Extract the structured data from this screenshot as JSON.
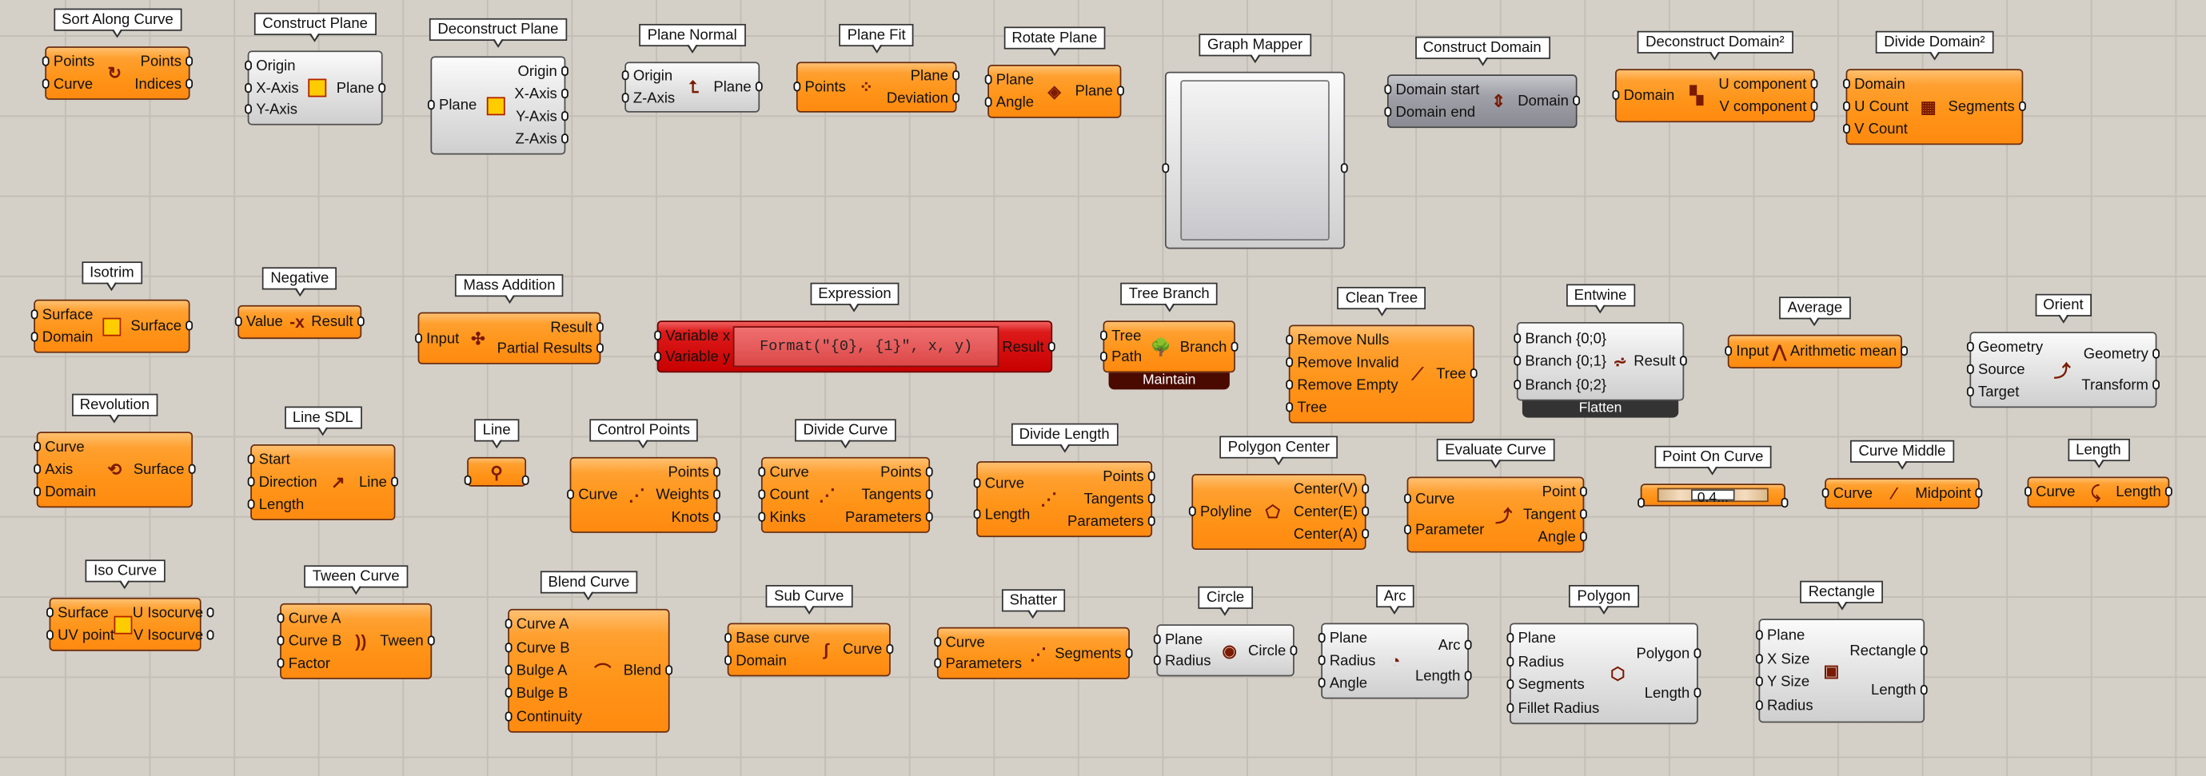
{
  "canvas": {
    "background": "#d4d0c8",
    "grid_color": "#c3bfb7"
  },
  "colors": {
    "orange": "#ff9418",
    "gray": "#e0e0e0",
    "dark_gray": "#a0a0a8",
    "red": "#d01010",
    "maintain_footer": "#4a0a00",
    "flatten_footer": "#333333"
  },
  "components": [
    {
      "title": "Sort Along Curve",
      "style": "orange",
      "icon": "sort-along-curve-icon",
      "glyph": "↻",
      "inputs": [
        "Points",
        "Curve"
      ],
      "outputs": [
        "Points",
        "Indices"
      ]
    },
    {
      "title": "Construct Plane",
      "style": "gray",
      "icon": "construct-plane-icon",
      "glyph": "",
      "inputs": [
        "Origin",
        "X-Axis",
        "Y-Axis"
      ],
      "outputs": [
        "Plane"
      ]
    },
    {
      "title": "Deconstruct Plane",
      "style": "gray",
      "icon": "deconstruct-plane-icon",
      "glyph": "",
      "inputs": [
        "Plane"
      ],
      "outputs": [
        "Origin",
        "X-Axis",
        "Y-Axis",
        "Z-Axis"
      ]
    },
    {
      "title": "Plane Normal",
      "style": "gray",
      "icon": "plane-normal-icon",
      "glyph": "⮤",
      "inputs": [
        "Origin",
        "Z-Axis"
      ],
      "outputs": [
        "Plane"
      ]
    },
    {
      "title": "Plane Fit",
      "style": "orange",
      "icon": "plane-fit-icon",
      "glyph": "⁘",
      "inputs": [
        "Points"
      ],
      "outputs": [
        "Plane",
        "Deviation"
      ]
    },
    {
      "title": "Rotate Plane",
      "style": "orange",
      "icon": "rotate-plane-icon",
      "glyph": "◈",
      "inputs": [
        "Plane",
        "Angle"
      ],
      "outputs": [
        "Plane"
      ]
    },
    {
      "title": "Graph Mapper",
      "style": "gray",
      "kind": "graph",
      "inputs": [
        ""
      ],
      "outputs": [
        ""
      ]
    },
    {
      "title": "Construct Domain",
      "style": "dgray",
      "icon": "construct-domain-icon",
      "glyph": "⇕",
      "inputs": [
        "Domain start",
        "Domain end"
      ],
      "outputs": [
        "Domain"
      ]
    },
    {
      "title": "Deconstruct Domain²",
      "style": "orange",
      "icon": "deconstruct-domain2-icon",
      "glyph": "▚",
      "inputs": [
        "Domain"
      ],
      "outputs": [
        "U component",
        "V component"
      ]
    },
    {
      "title": "Divide Domain²",
      "style": "orange",
      "icon": "divide-domain2-icon",
      "glyph": "▦",
      "inputs": [
        "Domain",
        "U Count",
        "V Count"
      ],
      "outputs": [
        "Segments"
      ]
    },
    {
      "title": "Isotrim",
      "style": "orange",
      "icon": "isotrim-icon",
      "glyph": "",
      "inputs": [
        "Surface",
        "Domain"
      ],
      "outputs": [
        "Surface"
      ]
    },
    {
      "title": "Negative",
      "style": "orange",
      "icon": "negative-icon",
      "glyph": "-x",
      "inputs": [
        "Value"
      ],
      "outputs": [
        "Result"
      ]
    },
    {
      "title": "Mass Addition",
      "style": "orange",
      "icon": "mass-addition-icon",
      "glyph": "✣",
      "inputs": [
        "Input"
      ],
      "outputs": [
        "Result",
        "Partial Results"
      ]
    },
    {
      "title": "Expression",
      "style": "red",
      "kind": "expression",
      "expression": "Format(\"{0}, {1}\", x, y)",
      "inputs": [
        "Variable x",
        "Variable y"
      ],
      "outputs": [
        "Result"
      ]
    },
    {
      "title": "Tree Branch",
      "style": "orange",
      "icon": "tree-branch-icon",
      "glyph": "🌳",
      "inputs": [
        "Tree",
        "Path"
      ],
      "outputs": [
        "Branch"
      ],
      "footer": "Maintain",
      "footer_style": "maintain"
    },
    {
      "title": "Clean Tree",
      "style": "orange",
      "icon": "clean-tree-icon",
      "glyph": "⟋",
      "inputs": [
        "Remove Nulls",
        "Remove Invalid",
        "Remove Empty",
        "Tree"
      ],
      "outputs": [
        "Tree"
      ]
    },
    {
      "title": "Entwine",
      "style": "gray",
      "icon": "entwine-icon",
      "glyph": "⩫",
      "inputs": [
        "Branch {0;0}",
        "Branch {0;1}",
        "Branch {0;2}"
      ],
      "outputs": [
        "Result"
      ],
      "footer": "Flatten",
      "footer_style": "flatten"
    },
    {
      "title": "Average",
      "style": "orange",
      "icon": "average-icon",
      "glyph": "⋀",
      "inputs": [
        "Input"
      ],
      "outputs": [
        "Arithmetic mean"
      ]
    },
    {
      "title": "Orient",
      "style": "gray",
      "icon": "orient-icon",
      "glyph": "⤴",
      "inputs": [
        "Geometry",
        "Source",
        "Target"
      ],
      "outputs": [
        "Geometry",
        "Transform"
      ]
    },
    {
      "title": "Revolution",
      "style": "orange",
      "icon": "revolution-icon",
      "glyph": "⟲",
      "inputs": [
        "Curve",
        "Axis",
        "Domain"
      ],
      "outputs": [
        "Surface"
      ]
    },
    {
      "title": "Line SDL",
      "style": "orange",
      "icon": "line-sdl-icon",
      "glyph": "↗",
      "inputs": [
        "Start",
        "Direction",
        "Length"
      ],
      "outputs": [
        "Line"
      ]
    },
    {
      "title": "Line",
      "style": "orange",
      "icon": "line-icon",
      "glyph": "⚲",
      "kind": "iconOnly",
      "inputs": [
        ""
      ],
      "outputs": [
        ""
      ]
    },
    {
      "title": "Control Points",
      "style": "orange",
      "icon": "control-points-icon",
      "glyph": "⋰",
      "inputs": [
        "Curve"
      ],
      "outputs": [
        "Points",
        "Weights",
        "Knots"
      ]
    },
    {
      "title": "Divide Curve",
      "style": "orange",
      "icon": "divide-curve-icon",
      "glyph": "⋰",
      "inputs": [
        "Curve",
        "Count",
        "Kinks"
      ],
      "outputs": [
        "Points",
        "Tangents",
        "Parameters"
      ]
    },
    {
      "title": "Divide Length",
      "style": "orange",
      "icon": "divide-length-icon",
      "glyph": "⋰",
      "inputs": [
        "Curve",
        "Length"
      ],
      "outputs": [
        "Points",
        "Tangents",
        "Parameters"
      ]
    },
    {
      "title": "Polygon Center",
      "style": "orange",
      "icon": "polygon-center-icon",
      "glyph": "⬠",
      "inputs": [
        "Polyline"
      ],
      "outputs": [
        "Center(V)",
        "Center(E)",
        "Center(A)"
      ]
    },
    {
      "title": "Evaluate Curve",
      "style": "orange",
      "icon": "evaluate-curve-icon",
      "glyph": "⤴",
      "inputs": [
        "Curve",
        "Parameter"
      ],
      "outputs": [
        "Point",
        "Tangent",
        "Angle"
      ]
    },
    {
      "title": "Point On Curve",
      "style": "orange",
      "kind": "slider",
      "value": "0.4...",
      "inputs": [
        ""
      ],
      "outputs": [
        ""
      ]
    },
    {
      "title": "Curve Middle",
      "style": "orange",
      "icon": "curve-middle-icon",
      "glyph": "⁄",
      "inputs": [
        "Curve"
      ],
      "outputs": [
        "Midpoint"
      ]
    },
    {
      "title": "Length",
      "style": "orange",
      "icon": "length-icon",
      "glyph": "⤹",
      "inputs": [
        "Curve"
      ],
      "outputs": [
        "Length"
      ]
    },
    {
      "title": "Iso Curve",
      "style": "orange",
      "icon": "iso-curve-icon",
      "glyph": "",
      "inputs": [
        "Surface",
        "UV point"
      ],
      "outputs": [
        "U Isocurve",
        "V Isocurve"
      ]
    },
    {
      "title": "Tween Curve",
      "style": "orange",
      "icon": "tween-curve-icon",
      "glyph": "))",
      "inputs": [
        "Curve A",
        "Curve B",
        "Factor"
      ],
      "outputs": [
        "Tween"
      ]
    },
    {
      "title": "Blend Curve",
      "style": "orange",
      "icon": "blend-curve-icon",
      "glyph": "⌒",
      "inputs": [
        "Curve A",
        "Curve B",
        "Bulge A",
        "Bulge B",
        "Continuity"
      ],
      "outputs": [
        "Blend"
      ]
    },
    {
      "title": "Sub Curve",
      "style": "orange",
      "icon": "sub-curve-icon",
      "glyph": "∫",
      "inputs": [
        "Base curve",
        "Domain"
      ],
      "outputs": [
        "Curve"
      ]
    },
    {
      "title": "Shatter",
      "style": "orange",
      "icon": "shatter-icon",
      "glyph": "⋰",
      "inputs": [
        "Curve",
        "Parameters"
      ],
      "outputs": [
        "Segments"
      ]
    },
    {
      "title": "Circle",
      "style": "gray",
      "icon": "circle-icon",
      "glyph": "◉",
      "inputs": [
        "Plane",
        "Radius"
      ],
      "outputs": [
        "Circle"
      ]
    },
    {
      "title": "Arc",
      "style": "gray",
      "icon": "arc-icon",
      "glyph": "◔",
      "inputs": [
        "Plane",
        "Radius",
        "Angle"
      ],
      "outputs": [
        "Arc",
        "Length"
      ]
    },
    {
      "title": "Polygon",
      "style": "gray",
      "icon": "polygon-icon",
      "glyph": "⬡",
      "inputs": [
        "Plane",
        "Radius",
        "Segments",
        "Fillet Radius"
      ],
      "outputs": [
        "Polygon",
        "Length"
      ]
    },
    {
      "title": "Rectangle",
      "style": "gray",
      "icon": "rectangle-icon",
      "glyph": "▣",
      "inputs": [
        "Plane",
        "X Size",
        "Y Size",
        "Radius"
      ],
      "outputs": [
        "Rectangle",
        "Length"
      ]
    }
  ]
}
